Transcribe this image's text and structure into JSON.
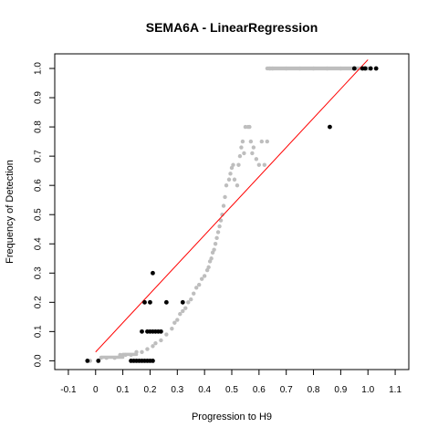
{
  "chart_data": {
    "type": "scatter",
    "title": "SEMA6A - LinearRegression",
    "xlabel": "Progression to H9",
    "ylabel": "Frequency of Detection",
    "xlim": [
      -0.15,
      1.15
    ],
    "ylim": [
      -0.03,
      1.05
    ],
    "x_ticks": [
      "-0.1",
      "0",
      "0.1",
      "0.2",
      "0.3",
      "0.4",
      "0.5",
      "0.6",
      "0.7",
      "0.8",
      "0.9",
      "1.0",
      "1.1"
    ],
    "x_tick_values": [
      -0.1,
      0.0,
      0.1,
      0.2,
      0.3,
      0.4,
      0.5,
      0.6,
      0.7,
      0.8,
      0.9,
      1.0,
      1.1
    ],
    "y_ticks": [
      "0.0",
      "0.1",
      "0.2",
      "0.3",
      "0.4",
      "0.5",
      "0.6",
      "0.7",
      "0.8",
      "0.9",
      "1.0"
    ],
    "y_tick_values": [
      0.0,
      0.1,
      0.2,
      0.3,
      0.4,
      0.5,
      0.6,
      0.7,
      0.8,
      0.9,
      1.0
    ],
    "series": [
      {
        "style": "smoothed",
        "color": "#bebebe",
        "x": [
          -0.02,
          0.02,
          0.04,
          0.07,
          0.09,
          0.11,
          0.13,
          0.15,
          0.17,
          0.19,
          0.21,
          0.22,
          0.24,
          0.26,
          0.28,
          0.29,
          0.3,
          0.31,
          0.32,
          0.33,
          0.34,
          0.35,
          0.36,
          0.37,
          0.38,
          0.39,
          0.4,
          0.41,
          0.415,
          0.42,
          0.425,
          0.43,
          0.435,
          0.44,
          0.445,
          0.45,
          0.455,
          0.46,
          0.465,
          0.47,
          0.475,
          0.48,
          0.49,
          0.495,
          0.5,
          0.505,
          0.51,
          0.52,
          0.525,
          0.53,
          0.535,
          0.54,
          0.545,
          0.55,
          0.56,
          0.565,
          0.57,
          0.575,
          0.58,
          0.59,
          0.6,
          0.61,
          0.62,
          0.63,
          0.64,
          0.65,
          0.7,
          0.75,
          0.8,
          0.85,
          0.9,
          0.95,
          1.0
        ],
        "y": [
          0.0,
          0.01,
          0.01,
          0.01,
          0.02,
          0.02,
          0.02,
          0.03,
          0.03,
          0.04,
          0.05,
          0.06,
          0.07,
          0.09,
          0.11,
          0.13,
          0.14,
          0.16,
          0.17,
          0.18,
          0.2,
          0.21,
          0.23,
          0.25,
          0.26,
          0.28,
          0.29,
          0.31,
          0.32,
          0.34,
          0.35,
          0.37,
          0.38,
          0.4,
          0.42,
          0.44,
          0.46,
          0.48,
          0.5,
          0.53,
          0.56,
          0.6,
          0.62,
          0.64,
          0.66,
          0.67,
          0.62,
          0.6,
          0.67,
          0.7,
          0.73,
          0.75,
          0.71,
          0.8,
          0.8,
          0.8,
          0.75,
          0.71,
          0.73,
          0.69,
          0.67,
          0.75,
          0.67,
          0.75,
          1.0,
          1.0,
          1.0,
          1.0,
          1.0,
          1.0,
          1.0,
          1.0,
          1.0
        ]
      },
      {
        "style": "observed",
        "color": "#000000",
        "x": [
          -0.03,
          0.01,
          0.13,
          0.14,
          0.15,
          0.16,
          0.17,
          0.18,
          0.19,
          0.2,
          0.21,
          0.17,
          0.19,
          0.2,
          0.21,
          0.22,
          0.23,
          0.24,
          0.18,
          0.2,
          0.26,
          0.32,
          0.21,
          0.86,
          0.95,
          0.98,
          0.99,
          1.01,
          1.03
        ],
        "y": [
          0.0,
          0.0,
          0.0,
          0.0,
          0.0,
          0.0,
          0.0,
          0.0,
          0.0,
          0.0,
          0.0,
          0.1,
          0.1,
          0.1,
          0.1,
          0.1,
          0.1,
          0.1,
          0.2,
          0.2,
          0.2,
          0.2,
          0.3,
          0.8,
          1.0,
          1.0,
          1.0,
          1.0,
          1.0
        ]
      }
    ],
    "fit_line": {
      "color": "#ff0000",
      "x": [
        0.0,
        1.0
      ],
      "y": [
        0.03,
        1.03
      ]
    },
    "grid": false,
    "legend": "none"
  }
}
